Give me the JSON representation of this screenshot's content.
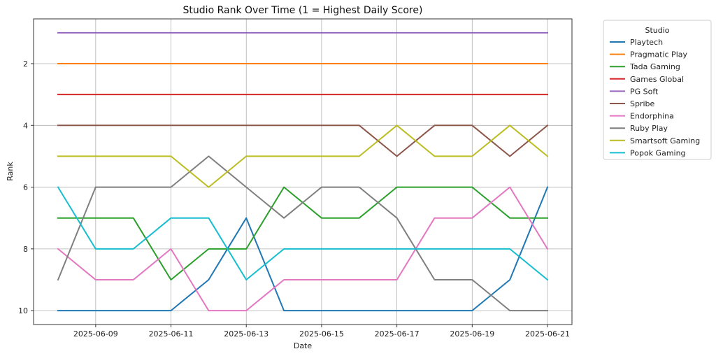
{
  "chart_data": {
    "type": "line",
    "title": "Studio Rank Over Time (1 = Highest Daily Score)",
    "xlabel": "Date",
    "ylabel": "Rank",
    "x": [
      "2025-06-08",
      "2025-06-09",
      "2025-06-10",
      "2025-06-11",
      "2025-06-12",
      "2025-06-13",
      "2025-06-14",
      "2025-06-15",
      "2025-06-16",
      "2025-06-17",
      "2025-06-18",
      "2025-06-19",
      "2025-06-20",
      "2025-06-21"
    ],
    "x_tick_labels": [
      "2025-06-09",
      "2025-06-11",
      "2025-06-13",
      "2025-06-15",
      "2025-06-17",
      "2025-06-19",
      "2025-06-21"
    ],
    "y_ticks": [
      2,
      4,
      6,
      8,
      10
    ],
    "ylim": [
      10.45,
      0.55
    ],
    "y_inverted": true,
    "grid": true,
    "legend_title": "Studio",
    "legend_position": "outside-top-right",
    "series": [
      {
        "name": "Playtech",
        "color": "#1f77b4",
        "values": [
          10,
          10,
          10,
          10,
          9,
          7,
          10,
          10,
          10,
          10,
          10,
          10,
          9,
          6
        ]
      },
      {
        "name": "Pragmatic Play",
        "color": "#ff7f0e",
        "values": [
          2,
          2,
          2,
          2,
          2,
          2,
          2,
          2,
          2,
          2,
          2,
          2,
          2,
          2
        ]
      },
      {
        "name": "Tada Gaming",
        "color": "#2ca02c",
        "values": [
          7,
          7,
          7,
          9,
          8,
          8,
          6,
          7,
          7,
          6,
          6,
          6,
          7,
          7
        ]
      },
      {
        "name": "Games Global",
        "color": "#d62728",
        "values": [
          3,
          3,
          3,
          3,
          3,
          3,
          3,
          3,
          3,
          3,
          3,
          3,
          3,
          3
        ]
      },
      {
        "name": "PG Soft",
        "color": "#9467bd",
        "values": [
          1,
          1,
          1,
          1,
          1,
          1,
          1,
          1,
          1,
          1,
          1,
          1,
          1,
          1
        ]
      },
      {
        "name": "Spribe",
        "color": "#8c564b",
        "values": [
          4,
          4,
          4,
          4,
          4,
          4,
          4,
          4,
          4,
          5,
          4,
          4,
          5,
          4
        ]
      },
      {
        "name": "Endorphina",
        "color": "#e377c2",
        "values": [
          8,
          9,
          9,
          8,
          10,
          10,
          9,
          9,
          9,
          9,
          7,
          7,
          6,
          8
        ]
      },
      {
        "name": "Ruby Play",
        "color": "#7f7f7f",
        "values": [
          9,
          6,
          6,
          6,
          5,
          6,
          7,
          6,
          6,
          7,
          9,
          9,
          10,
          10
        ]
      },
      {
        "name": "Smartsoft Gaming",
        "color": "#bcbd22",
        "values": [
          5,
          5,
          5,
          5,
          6,
          5,
          5,
          5,
          5,
          4,
          5,
          5,
          4,
          5
        ]
      },
      {
        "name": "Popok Gaming",
        "color": "#17becf",
        "values": [
          6,
          8,
          8,
          7,
          7,
          9,
          8,
          8,
          8,
          8,
          8,
          8,
          8,
          9
        ]
      }
    ]
  }
}
